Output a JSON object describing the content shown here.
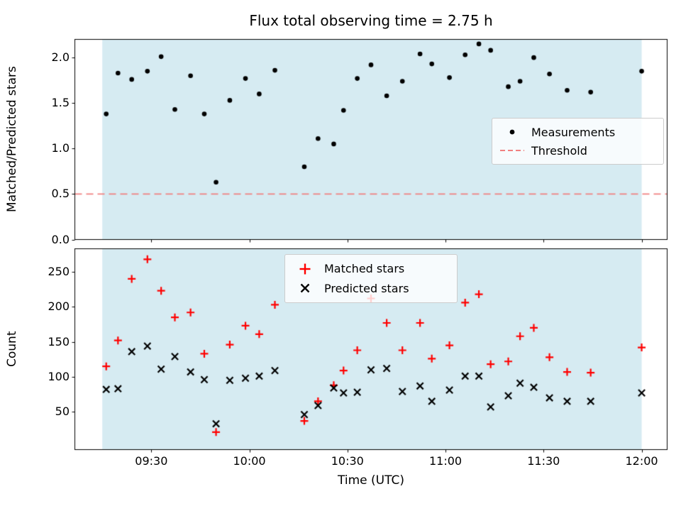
{
  "figure": {
    "title": "Flux total observing time = 2.75 h",
    "background": "#ffffff"
  },
  "chart_data": [
    {
      "type": "scatter",
      "title": "Flux total observing time = 2.75 h",
      "ylabel": "Matched/Predicted stars",
      "xlim": [
        9.11,
        12.13
      ],
      "ylim": [
        0,
        2.2
      ],
      "yticks": [
        0.0,
        0.5,
        1.0,
        1.5,
        2.0
      ],
      "ytick_labels": [
        "0.0",
        "0.5",
        "1.0",
        "1.5",
        "2.0"
      ],
      "grid": false,
      "shaded_region": {
        "x_start": 9.25,
        "x_end": 12.0,
        "color": "#add8e6",
        "alpha": 0.5
      },
      "threshold": {
        "value": 0.5,
        "style": "dashed",
        "color": "#f08080"
      },
      "legend": {
        "position": "center right",
        "entries": [
          {
            "label": "Measurements",
            "marker": "dot",
            "color": "#000000"
          },
          {
            "label": "Threshold",
            "marker": "dashed-line",
            "color": "#f08080"
          }
        ]
      },
      "series": [
        {
          "name": "Measurements",
          "marker": "dot",
          "color": "#000000",
          "x": [
            9.27,
            9.33,
            9.4,
            9.48,
            9.55,
            9.62,
            9.7,
            9.77,
            9.83,
            9.9,
            9.98,
            10.05,
            10.13,
            10.28,
            10.35,
            10.43,
            10.48,
            10.55,
            10.62,
            10.7,
            10.78,
            10.87,
            10.93,
            11.02,
            11.1,
            11.17,
            11.23,
            11.32,
            11.38,
            11.45,
            11.53,
            11.62,
            11.74,
            12.0
          ],
          "y": [
            1.38,
            1.83,
            1.76,
            1.85,
            2.01,
            1.43,
            1.8,
            1.38,
            0.63,
            1.53,
            1.77,
            1.6,
            1.86,
            0.8,
            1.11,
            1.05,
            1.42,
            1.77,
            1.92,
            1.58,
            1.74,
            2.04,
            1.93,
            1.78,
            2.03,
            2.15,
            2.08,
            1.68,
            1.74,
            2.0,
            1.82,
            1.64,
            1.62,
            1.85
          ]
        }
      ]
    },
    {
      "type": "scatter",
      "xlabel": "Time (UTC)",
      "ylabel": "Count",
      "xlim": [
        9.11,
        12.13
      ],
      "ylim": [
        -4,
        283
      ],
      "yticks": [
        50,
        100,
        150,
        200,
        250
      ],
      "ytick_labels": [
        "50",
        "100",
        "150",
        "200",
        "250"
      ],
      "xticks": [
        9.5,
        10.0,
        10.5,
        11.0,
        11.5,
        12.0
      ],
      "xtick_labels": [
        "09:30",
        "10:00",
        "10:30",
        "11:00",
        "11:30",
        "12:00"
      ],
      "grid": false,
      "shaded_region": {
        "x_start": 9.25,
        "x_end": 12.0,
        "color": "#add8e6",
        "alpha": 0.5
      },
      "legend": {
        "position": "upper center",
        "entries": [
          {
            "label": "Matched stars",
            "marker": "plus",
            "color": "#ff0000"
          },
          {
            "label": "Predicted stars",
            "marker": "x",
            "color": "#000000"
          }
        ]
      },
      "series": [
        {
          "name": "Matched stars",
          "marker": "plus",
          "color": "#ff0000",
          "x": [
            9.27,
            9.33,
            9.4,
            9.48,
            9.55,
            9.62,
            9.7,
            9.77,
            9.83,
            9.9,
            9.98,
            10.05,
            10.13,
            10.28,
            10.35,
            10.43,
            10.48,
            10.55,
            10.62,
            10.7,
            10.78,
            10.87,
            10.93,
            11.02,
            11.1,
            11.17,
            11.23,
            11.32,
            11.38,
            11.45,
            11.53,
            11.62,
            11.74,
            12.0
          ],
          "y": [
            115,
            152,
            240,
            268,
            223,
            185,
            192,
            133,
            21,
            146,
            173,
            161,
            203,
            37,
            65,
            88,
            109,
            138,
            212,
            177,
            138,
            177,
            126,
            145,
            206,
            218,
            118,
            122,
            158,
            170,
            128,
            107,
            106,
            142
          ]
        },
        {
          "name": "Predicted stars",
          "marker": "x",
          "color": "#000000",
          "x": [
            9.27,
            9.33,
            9.4,
            9.48,
            9.55,
            9.62,
            9.7,
            9.77,
            9.83,
            9.9,
            9.98,
            10.05,
            10.13,
            10.28,
            10.35,
            10.43,
            10.48,
            10.55,
            10.62,
            10.7,
            10.78,
            10.87,
            10.93,
            11.02,
            11.1,
            11.17,
            11.23,
            11.32,
            11.38,
            11.45,
            11.53,
            11.62,
            11.74,
            12.0
          ],
          "y": [
            82,
            83,
            136,
            144,
            111,
            129,
            107,
            96,
            33,
            95,
            98,
            101,
            109,
            46,
            59,
            84,
            77,
            78,
            110,
            112,
            79,
            87,
            65,
            81,
            101,
            101,
            57,
            73,
            91,
            85,
            70,
            65,
            65,
            77
          ]
        }
      ]
    }
  ]
}
